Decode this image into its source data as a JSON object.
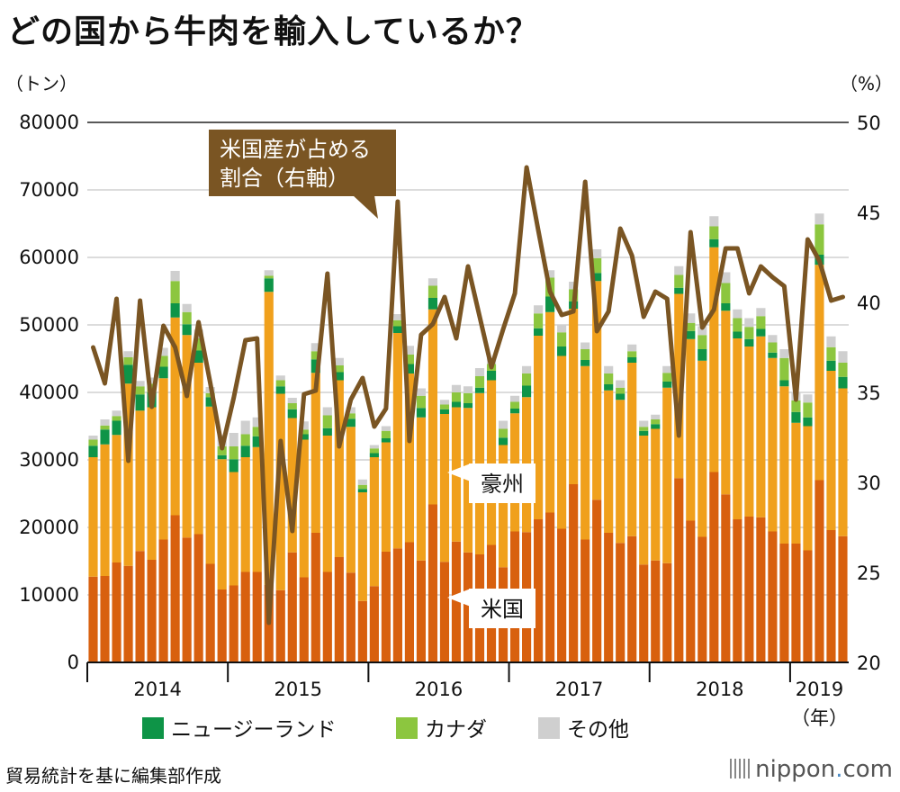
{
  "title": "どの国から牛肉を輸入しているか？",
  "source": "貿易統計を基に編集部作成",
  "brand": {
    "name": "nippon",
    "dot": ".",
    "tld": "com"
  },
  "colors": {
    "usa": "#d8600e",
    "australia": "#f0a01c",
    "nz": "#0e9447",
    "canada": "#8cc63f",
    "other": "#cfcfcf",
    "line": "#7a5523",
    "grid": "#b9b9b9",
    "callout": "#7a5523"
  },
  "chart_data": {
    "type": "bar",
    "stacked": true,
    "title": "どの国から牛肉を輸入しているか？",
    "ylabel_left": "（トン）",
    "ylabel_right": "（%）",
    "ylim_left": [
      0,
      80000
    ],
    "ylim_right": [
      20,
      50
    ],
    "yticks_left": [
      "0",
      "10000",
      "20000",
      "30000",
      "40000",
      "50000",
      "60000",
      "70000",
      "80000"
    ],
    "yticks_right": [
      "20",
      "25",
      "30",
      "35",
      "40",
      "45",
      "50"
    ],
    "year_labels": [
      "2014",
      "2015",
      "2016",
      "2017",
      "2018",
      "2019"
    ],
    "x_unit": "（年）",
    "months_per_year": 12,
    "series": [
      {
        "key": "usa",
        "name": "米国",
        "values": [
          12700,
          12800,
          14800,
          14300,
          16500,
          15200,
          18200,
          21800,
          18500,
          19000,
          14600,
          10800,
          11400,
          13400,
          13400,
          11500,
          10700,
          16300,
          12600,
          19200,
          13400,
          15600,
          13300,
          9100,
          11300,
          16400,
          16900,
          17800,
          15100,
          23400,
          14900,
          17900,
          16300,
          16000,
          17400,
          14100,
          19400,
          19300,
          21200,
          22200,
          19800,
          26400,
          18200,
          24100,
          19200,
          17700,
          18700,
          14500,
          15100,
          14700,
          27300,
          21000,
          18600,
          28200,
          24900,
          21200,
          21600,
          21500,
          19400,
          17600,
          17600,
          16600,
          27000,
          19600,
          18700
        ]
      },
      {
        "key": "australia",
        "name": "豪州",
        "values": [
          17700,
          19500,
          18900,
          27000,
          20800,
          22600,
          23900,
          29300,
          30000,
          25400,
          23300,
          19300,
          16800,
          17000,
          18500,
          43400,
          29100,
          19900,
          20400,
          23700,
          20200,
          26200,
          21600,
          16100,
          19100,
          16200,
          31900,
          25000,
          21200,
          28900,
          21900,
          19900,
          21400,
          23900,
          24400,
          18100,
          17500,
          20000,
          27200,
          29700,
          25600,
          26000,
          25700,
          32400,
          21100,
          21200,
          25700,
          19100,
          19500,
          26000,
          27300,
          26900,
          26100,
          33300,
          27200,
          26800,
          25200,
          26800,
          25700,
          23300,
          17900,
          18400,
          31900,
          23600,
          21900
        ]
      },
      {
        "key": "nz",
        "name": "ニュージーランド",
        "values": [
          1700,
          2200,
          2100,
          2800,
          2400,
          2200,
          1700,
          2100,
          1600,
          1800,
          1400,
          600,
          1900,
          1700,
          1600,
          2000,
          1100,
          1300,
          800,
          2000,
          1100,
          1200,
          1200,
          500,
          600,
          600,
          1000,
          1400,
          1400,
          1700,
          700,
          800,
          700,
          800,
          1400,
          1100,
          700,
          1700,
          1100,
          2300,
          1400,
          1100,
          900,
          1200,
          900,
          900,
          800,
          700,
          700,
          900,
          900,
          1200,
          1700,
          1200,
          1100,
          1000,
          1100,
          1100,
          800,
          900,
          1600,
          1300,
          1500,
          1500,
          1700
        ]
      },
      {
        "key": "canada",
        "name": "カナダ",
        "values": [
          900,
          600,
          700,
          1100,
          1200,
          1300,
          1600,
          3300,
          1800,
          1800,
          600,
          1300,
          1900,
          1700,
          1400,
          400,
          900,
          900,
          700,
          1200,
          1900,
          1000,
          800,
          600,
          700,
          1100,
          900,
          1400,
          1800,
          1800,
          700,
          1400,
          1500,
          1700,
          1000,
          1300,
          1000,
          1800,
          2200,
          2800,
          2100,
          1800,
          1600,
          2200,
          1600,
          900,
          900,
          600,
          700,
          1300,
          1900,
          1200,
          2100,
          1900,
          3000,
          2000,
          1800,
          1900,
          1500,
          3300,
          1700,
          2200,
          4500,
          2000,
          2100
        ]
      },
      {
        "key": "other",
        "name": "その他",
        "values": [
          600,
          900,
          800,
          900,
          800,
          900,
          1200,
          1500,
          1200,
          1300,
          900,
          1700,
          2000,
          2000,
          1400,
          800,
          700,
          800,
          1200,
          1200,
          1200,
          1100,
          900,
          800,
          500,
          700,
          900,
          1300,
          1100,
          1100,
          700,
          1100,
          1000,
          1200,
          900,
          1200,
          900,
          1100,
          1200,
          1100,
          1100,
          1100,
          1000,
          1300,
          1100,
          1100,
          1000,
          900,
          700,
          1000,
          1300,
          1400,
          1300,
          1500,
          1600,
          1300,
          1300,
          1200,
          1100,
          1300,
          1300,
          1200,
          1600,
          1600,
          1700
        ]
      },
      {
        "key": "share",
        "name": "米国産が占める割合（右軸）",
        "axis": "right",
        "values": [
          37.5,
          35.5,
          40.2,
          31.2,
          40.1,
          34.2,
          38.7,
          37.5,
          34.8,
          38.9,
          35.5,
          31.9,
          34.7,
          37.9,
          38.0,
          22.2,
          32.3,
          27.3,
          34.9,
          35.1,
          41.6,
          32.0,
          34.6,
          35.8,
          33.1,
          34.1,
          45.6,
          32.3,
          38.2,
          38.8,
          40.3,
          38.0,
          42.0,
          39.2,
          36.4,
          38.5,
          40.5,
          47.5,
          44.0,
          40.6,
          39.3,
          39.5,
          46.7,
          38.4,
          39.5,
          44.1,
          42.6,
          39.2,
          40.6,
          40.2,
          32.6,
          43.9,
          38.6,
          39.6,
          43.0,
          43.0,
          40.5,
          42.0,
          41.4,
          40.9,
          34.6,
          43.5,
          42.3,
          40.1,
          40.3
        ]
      }
    ],
    "annotations": [
      {
        "text": "豪州",
        "series": "australia"
      },
      {
        "text": "米国",
        "series": "usa"
      }
    ],
    "callout": {
      "line1": "米国産が占める",
      "line2": "割合（右軸）"
    },
    "legend": [
      {
        "key": "nz",
        "label": "ニュージーランド"
      },
      {
        "key": "canada",
        "label": "カナダ"
      },
      {
        "key": "other",
        "label": "その他"
      }
    ],
    "legend_position": "bottom"
  }
}
